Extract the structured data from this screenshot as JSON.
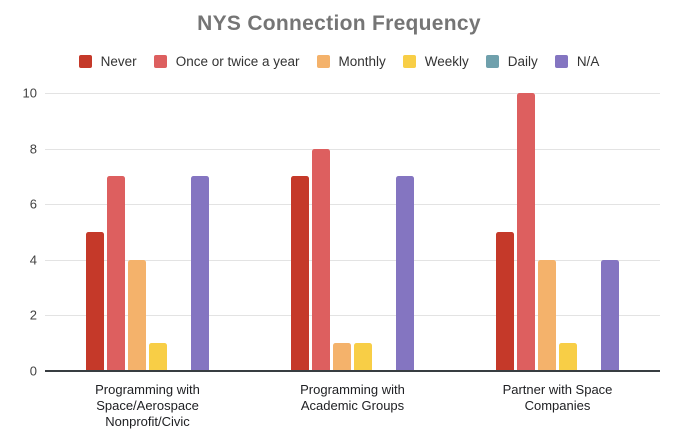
{
  "chart_data": {
    "type": "bar",
    "title": "NYS Connection Frequency",
    "categories": [
      "Programming with Space/Aerospace Nonprofit/Civic",
      "Programming with Academic Groups",
      "Partner with Space Companies"
    ],
    "category_label_lines": [
      [
        "Programming with",
        "Space/Aerospace",
        "Nonprofit/Civic"
      ],
      [
        "Programming with",
        "Academic Groups"
      ],
      [
        "Partner with Space",
        "Companies"
      ]
    ],
    "series": [
      {
        "name": "Never",
        "color": "#C53929",
        "values": [
          5,
          7,
          5
        ]
      },
      {
        "name": "Once or twice a year",
        "color": "#DD5F5F",
        "values": [
          7,
          8,
          10
        ]
      },
      {
        "name": "Monthly",
        "color": "#F4B26B",
        "values": [
          4,
          1,
          4
        ]
      },
      {
        "name": "Weekly",
        "color": "#F8CE46",
        "values": [
          1,
          1,
          1
        ]
      },
      {
        "name": "Daily",
        "color": "#6FA0AC",
        "values": [
          0,
          0,
          0
        ]
      },
      {
        "name": "N/A",
        "color": "#8475C1",
        "values": [
          7,
          7,
          4
        ]
      }
    ],
    "xlabel": "",
    "ylabel": "",
    "ylim": [
      0,
      10
    ],
    "yticks": [
      0,
      2,
      4,
      6,
      8,
      10
    ],
    "grid": true,
    "legend_position": "top"
  },
  "colors": {
    "background": "#FFFFFF",
    "title_text": "#757575",
    "axis_text": "#424242",
    "category_text": "#202124",
    "gridline": "#E3E3E3",
    "baseline": "#383D41"
  }
}
